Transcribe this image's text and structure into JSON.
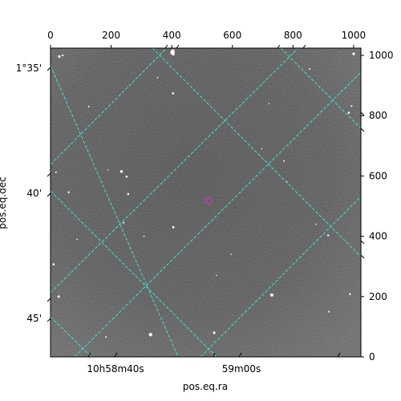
{
  "chart_data": {
    "type": "scatter",
    "xlabel": "pos.eq.ra",
    "ylabel": "pos.eq.dec",
    "pixel_axes": {
      "x_ticks": [
        "0",
        "200",
        "400",
        "600",
        "800",
        "1000"
      ],
      "y_ticks": [
        "0",
        "200",
        "400",
        "600",
        "800",
        "1000"
      ],
      "xlim": [
        0,
        1024
      ],
      "ylim": [
        0,
        1024
      ]
    },
    "world_ticks": {
      "ra": [
        "10h58m40s",
        "59m00s"
      ],
      "dec": [
        "1°35'",
        "40'",
        "45'"
      ]
    },
    "grid": true,
    "grid_color": "#40e0d0",
    "marker": {
      "x": 522,
      "y": 518,
      "color": "#cc33cc"
    },
    "stars": [
      {
        "x": 29,
        "y": 996,
        "m": 1.6
      },
      {
        "x": 40,
        "y": 1000,
        "m": 1.2
      },
      {
        "x": 126,
        "y": 830,
        "m": 1.0
      },
      {
        "x": 405,
        "y": 1008,
        "m": 1.3
      },
      {
        "x": 407,
        "y": 1002,
        "m": 1.0
      },
      {
        "x": 404,
        "y": 1018,
        "m": 1.0
      },
      {
        "x": 400,
        "y": 1016,
        "m": 0.9
      },
      {
        "x": 405,
        "y": 1012,
        "m": 0.9
      },
      {
        "x": 405,
        "y": 1006,
        "m": 1.0
      },
      {
        "x": 400,
        "y": 1010,
        "m": 0.9
      },
      {
        "x": 404,
        "y": 1016,
        "m": 0.9
      },
      {
        "x": 398,
        "y": 1008,
        "m": 0.9
      },
      {
        "x": 407,
        "y": 1008,
        "m": 1.0
      },
      {
        "x": 401,
        "y": 1008,
        "m": 0.9
      },
      {
        "x": 405,
        "y": 1014,
        "m": 0.9
      },
      {
        "x": 401,
        "y": 1010,
        "m": 1.0
      },
      {
        "x": 404,
        "y": 1006,
        "m": 0.9
      },
      {
        "x": 405,
        "y": 1011,
        "m": 0.9
      },
      {
        "x": 400,
        "y": 1012,
        "m": 0.9
      },
      {
        "x": 402,
        "y": 1006,
        "m": 0.9
      },
      {
        "x": 404,
        "y": 1010,
        "m": 0.9
      },
      {
        "x": 407,
        "y": 1014,
        "m": 0.9
      },
      {
        "x": 401,
        "y": 1004,
        "m": 0.9
      },
      {
        "x": 404,
        "y": 1012,
        "m": 0.9
      },
      {
        "x": 403,
        "y": 1010,
        "m": 0.9
      },
      {
        "x": 399,
        "y": 1012,
        "m": 0.9
      },
      {
        "x": 405,
        "y": 1004,
        "m": 1.0
      },
      {
        "x": 403,
        "y": 1016,
        "m": 0.9
      },
      {
        "x": 401,
        "y": 1014,
        "m": 0.9
      },
      {
        "x": 407,
        "y": 1010,
        "m": 0.9
      },
      {
        "x": 401,
        "y": 1012,
        "m": 0.9
      },
      {
        "x": 404,
        "y": 1008,
        "m": 0.9
      },
      {
        "x": 400,
        "y": 1014,
        "m": 0.9
      },
      {
        "x": 404,
        "y": 1014,
        "m": 0.9
      },
      {
        "x": 406,
        "y": 1012,
        "m": 0.9
      },
      {
        "x": 402,
        "y": 1012,
        "m": 0.9
      },
      {
        "x": 404,
        "y": 1004,
        "m": 0.9
      },
      {
        "x": 406,
        "y": 1006,
        "m": 0.9
      },
      {
        "x": 400,
        "y": 1004,
        "m": 0.9
      },
      {
        "x": 407,
        "y": 1016,
        "m": 0.9
      },
      {
        "x": 404,
        "y": 1002,
        "m": 0.9
      },
      {
        "x": 400,
        "y": 1006,
        "m": 0.9
      },
      {
        "x": 402,
        "y": 1016,
        "m": 0.9
      },
      {
        "x": 403,
        "y": 1004,
        "m": 0.9
      },
      {
        "x": 406,
        "y": 1016,
        "m": 0.9
      },
      {
        "x": 398,
        "y": 1012,
        "m": 0.9
      },
      {
        "x": 402,
        "y": 1014,
        "m": 0.9
      },
      {
        "x": 399,
        "y": 1008,
        "m": 0.9
      },
      {
        "x": 406,
        "y": 1008,
        "m": 0.9
      },
      {
        "x": 400,
        "y": 1008,
        "m": 0.9
      },
      {
        "x": 397,
        "y": 1010,
        "m": 0.9
      },
      {
        "x": 406,
        "y": 1014,
        "m": 0.9
      },
      {
        "x": 402,
        "y": 1008,
        "m": 0.9
      },
      {
        "x": 404,
        "y": 874,
        "m": 1.4
      },
      {
        "x": 353,
        "y": 926,
        "m": 0.9
      },
      {
        "x": 234,
        "y": 615,
        "m": 1.8
      },
      {
        "x": 251,
        "y": 598,
        "m": 1.3
      },
      {
        "x": 256,
        "y": 540,
        "m": 1.3
      },
      {
        "x": 60,
        "y": 546,
        "m": 1.2
      },
      {
        "x": 18,
        "y": 612,
        "m": 1.0
      },
      {
        "x": 241,
        "y": 445,
        "m": 1.0
      },
      {
        "x": 405,
        "y": 430,
        "m": 1.4
      },
      {
        "x": 308,
        "y": 400,
        "m": 0.9
      },
      {
        "x": 88,
        "y": 390,
        "m": 0.9
      },
      {
        "x": 10,
        "y": 307,
        "m": 1.3
      },
      {
        "x": 27,
        "y": 200,
        "m": 1.5
      },
      {
        "x": 183,
        "y": 66,
        "m": 1.0
      },
      {
        "x": 330,
        "y": 74,
        "m": 2.2
      },
      {
        "x": 540,
        "y": 80,
        "m": 1.6
      },
      {
        "x": 730,
        "y": 205,
        "m": 2.0
      },
      {
        "x": 916,
        "y": 403,
        "m": 1.2
      },
      {
        "x": 988,
        "y": 208,
        "m": 1.2
      },
      {
        "x": 918,
        "y": 150,
        "m": 1.0
      },
      {
        "x": 1000,
        "y": 1005,
        "m": 1.6
      },
      {
        "x": 855,
        "y": 955,
        "m": 1.0
      },
      {
        "x": 984,
        "y": 810,
        "m": 1.3
      },
      {
        "x": 993,
        "y": 832,
        "m": 1.1
      },
      {
        "x": 770,
        "y": 650,
        "m": 1.0
      },
      {
        "x": 697,
        "y": 690,
        "m": 0.8
      },
      {
        "x": 780,
        "y": 580,
        "m": 0.8
      },
      {
        "x": 548,
        "y": 270,
        "m": 0.8
      },
      {
        "x": 596,
        "y": 340,
        "m": 0.8
      },
      {
        "x": 190,
        "y": 620,
        "m": 0.8
      },
      {
        "x": 720,
        "y": 840,
        "m": 0.8
      },
      {
        "x": 876,
        "y": 440,
        "m": 0.8
      }
    ]
  }
}
